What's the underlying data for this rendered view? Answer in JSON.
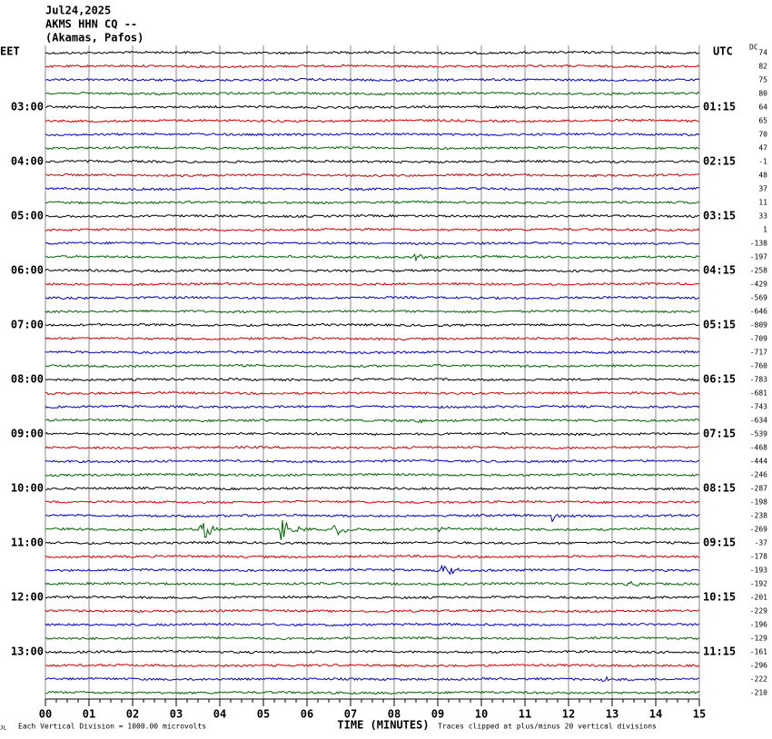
{
  "chart_data": {
    "type": "helicorder",
    "title_lines": [
      "Jul24,2025",
      "AKMS HHN CQ --",
      "(Akamas, Pafos)"
    ],
    "left_timezone": "EET",
    "right_timezone": "UTC",
    "dc_label": "DC",
    "colors": [
      "#000000",
      "#d00000",
      "#0000c0",
      "#006400"
    ],
    "dc_values": [
      74,
      82,
      75,
      80,
      64,
      65,
      70,
      47,
      -1,
      48,
      37,
      11,
      33,
      1,
      -138,
      -197,
      -258,
      -429,
      -569,
      -646,
      -809,
      -709,
      -717,
      -760,
      -783,
      -681,
      -743,
      -634,
      -539,
      -468,
      -444,
      -246,
      -287,
      -198,
      -238,
      -269,
      -37,
      -178,
      -193,
      -192,
      -201,
      -229,
      -196,
      -129,
      -161,
      -296,
      -222,
      -210
    ],
    "left_labels": [
      {
        "trace": 4,
        "label": "03:00"
      },
      {
        "trace": 8,
        "label": "04:00"
      },
      {
        "trace": 12,
        "label": "05:00"
      },
      {
        "trace": 16,
        "label": "06:00"
      },
      {
        "trace": 20,
        "label": "07:00"
      },
      {
        "trace": 24,
        "label": "08:00"
      },
      {
        "trace": 28,
        "label": "09:00"
      },
      {
        "trace": 32,
        "label": "10:00"
      },
      {
        "trace": 36,
        "label": "11:00"
      },
      {
        "trace": 40,
        "label": "12:00"
      },
      {
        "trace": 44,
        "label": "13:00"
      }
    ],
    "right_labels": [
      {
        "trace": 4,
        "label": "01:15"
      },
      {
        "trace": 8,
        "label": "02:15"
      },
      {
        "trace": 12,
        "label": "03:15"
      },
      {
        "trace": 16,
        "label": "04:15"
      },
      {
        "trace": 20,
        "label": "05:15"
      },
      {
        "trace": 24,
        "label": "06:15"
      },
      {
        "trace": 28,
        "label": "07:15"
      },
      {
        "trace": 32,
        "label": "08:15"
      },
      {
        "trace": 36,
        "label": "09:15"
      },
      {
        "trace": 40,
        "label": "10:15"
      },
      {
        "trace": 44,
        "label": "11:15"
      }
    ],
    "events": [
      {
        "trace": 15,
        "minute": 8.45,
        "amplitude": 5
      },
      {
        "trace": 27,
        "minute": 8.5,
        "amplitude": 3
      },
      {
        "trace": 34,
        "minute": 11.6,
        "amplitude": 7
      },
      {
        "trace": 35,
        "minute": 3.55,
        "amplitude": 18
      },
      {
        "trace": 35,
        "minute": 5.4,
        "amplitude": 16
      },
      {
        "trace": 35,
        "minute": 6.6,
        "amplitude": 9
      },
      {
        "trace": 35,
        "minute": 9.0,
        "amplitude": 4
      },
      {
        "trace": 38,
        "minute": 9.1,
        "amplitude": 10
      },
      {
        "trace": 39,
        "minute": 13.4,
        "amplitude": 5
      },
      {
        "trace": 46,
        "minute": 12.8,
        "amplitude": 3
      }
    ],
    "xlim": [
      0,
      15
    ],
    "xticks": [
      {
        "value": 0,
        "label": "00"
      },
      {
        "value": 1,
        "label": "01"
      },
      {
        "value": 2,
        "label": "02"
      },
      {
        "value": 3,
        "label": "03"
      },
      {
        "value": 4,
        "label": "04"
      },
      {
        "value": 5,
        "label": "05"
      },
      {
        "value": 6,
        "label": "06"
      },
      {
        "value": 7,
        "label": "07"
      },
      {
        "value": 8,
        "label": "08"
      },
      {
        "value": 9,
        "label": "09"
      },
      10,
      11,
      12,
      13,
      14,
      15
    ],
    "xlabel": "TIME (MINUTES)",
    "scale_note": "Each Vertical Division = 1000.00 microvolts",
    "clip_note": "Traces clipped at plus/minus 20 vertical divisions",
    "corner_mark": "JL"
  }
}
